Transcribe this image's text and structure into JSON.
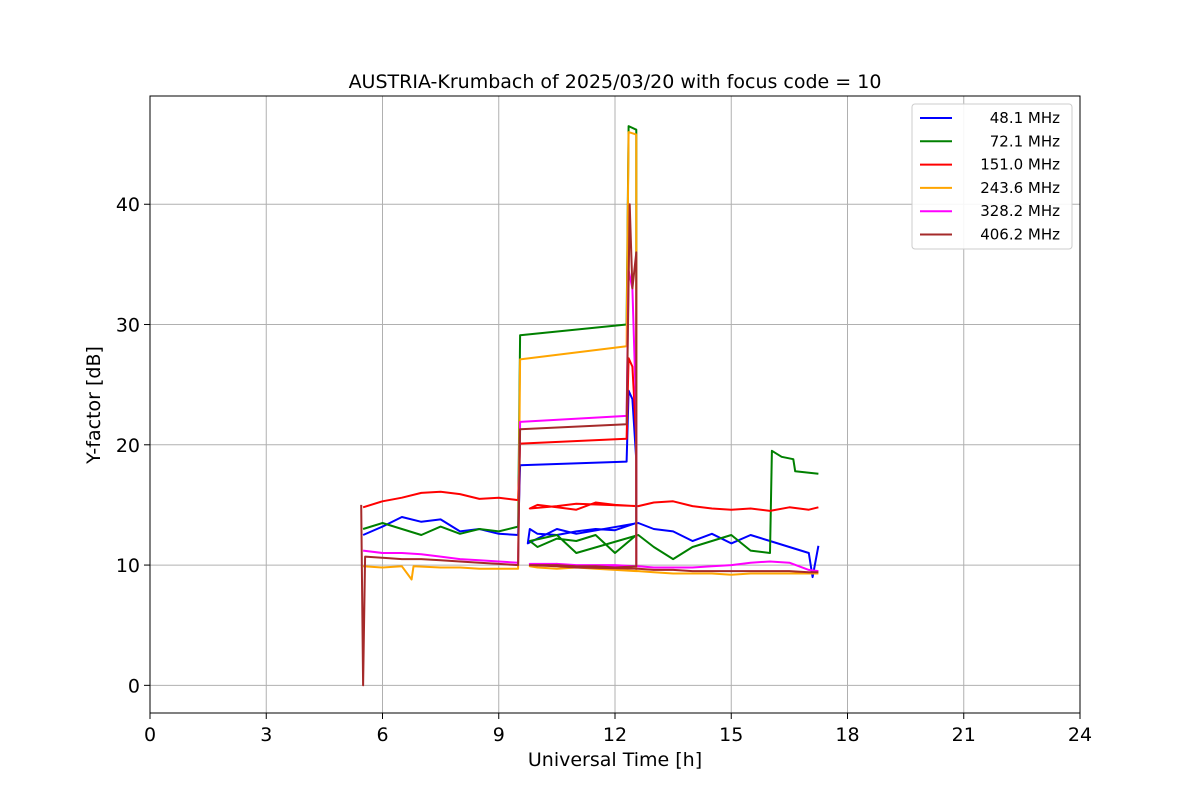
{
  "chart_data": {
    "type": "line",
    "title": "AUSTRIA-Krumbach of 2025/03/20 with focus code = 10",
    "xlabel": "Universal Time [h]",
    "ylabel": "Y-factor [dB]",
    "xlim": [
      0,
      24
    ],
    "ylim": [
      -2.3,
      49
    ],
    "xticks": [
      0,
      3,
      6,
      9,
      12,
      15,
      18,
      21,
      24
    ],
    "yticks": [
      0,
      10,
      20,
      30,
      40
    ],
    "grid": true,
    "legend_position": "top-right",
    "series": [
      {
        "name": "48.1 MHz",
        "color": "#0000ff",
        "points": [
          [
            5.5,
            12.5
          ],
          [
            6.0,
            13.2
          ],
          [
            6.5,
            14.0
          ],
          [
            7.0,
            13.6
          ],
          [
            7.5,
            13.8
          ],
          [
            8.0,
            12.8
          ],
          [
            8.5,
            13.0
          ],
          [
            9.0,
            12.6
          ],
          [
            9.5,
            12.5
          ],
          [
            9.55,
            18.3
          ],
          [
            12.3,
            18.6
          ],
          [
            12.35,
            24.5
          ],
          [
            12.45,
            23.8
          ],
          [
            12.55,
            18.7
          ],
          [
            12.55,
            13.5
          ],
          [
            12.0,
            12.9
          ],
          [
            11.5,
            13.0
          ],
          [
            11.0,
            12.8
          ],
          [
            10.5,
            12.5
          ],
          [
            10.0,
            12.6
          ],
          [
            9.8,
            13.0
          ],
          [
            9.75,
            11.8
          ],
          [
            10.5,
            13.0
          ],
          [
            11.0,
            12.6
          ],
          [
            12.6,
            13.5
          ],
          [
            13.0,
            13.0
          ],
          [
            13.5,
            12.8
          ],
          [
            14.0,
            12.0
          ],
          [
            14.5,
            12.6
          ],
          [
            15.0,
            11.8
          ],
          [
            15.5,
            12.5
          ],
          [
            16.0,
            12.0
          ],
          [
            16.5,
            11.5
          ],
          [
            17.0,
            11.0
          ],
          [
            17.1,
            9.0
          ],
          [
            17.25,
            11.6
          ]
        ]
      },
      {
        "name": "72.1 MHz",
        "color": "#008000",
        "points": [
          [
            5.5,
            13.0
          ],
          [
            6.0,
            13.5
          ],
          [
            6.5,
            13.0
          ],
          [
            7.0,
            12.5
          ],
          [
            7.5,
            13.2
          ],
          [
            8.0,
            12.6
          ],
          [
            8.5,
            13.0
          ],
          [
            9.0,
            12.8
          ],
          [
            9.5,
            13.2
          ],
          [
            9.55,
            29.1
          ],
          [
            12.3,
            30.0
          ],
          [
            12.35,
            46.5
          ],
          [
            12.55,
            46.2
          ],
          [
            12.55,
            12.5
          ],
          [
            12.0,
            11.0
          ],
          [
            11.5,
            12.5
          ],
          [
            11.0,
            12.0
          ],
          [
            10.5,
            12.2
          ],
          [
            10.0,
            11.5
          ],
          [
            9.8,
            12.0
          ],
          [
            10.5,
            12.5
          ],
          [
            11.0,
            11.0
          ],
          [
            12.6,
            12.5
          ],
          [
            13.0,
            11.5
          ],
          [
            13.5,
            10.5
          ],
          [
            14.0,
            11.5
          ],
          [
            14.5,
            12.0
          ],
          [
            15.0,
            12.5
          ],
          [
            15.5,
            11.2
          ],
          [
            16.0,
            11.0
          ],
          [
            16.05,
            19.5
          ],
          [
            16.3,
            19.0
          ],
          [
            16.6,
            18.8
          ],
          [
            16.65,
            17.8
          ],
          [
            17.25,
            17.6
          ]
        ]
      },
      {
        "name": "151.0 MHz",
        "color": "#ff0000",
        "points": [
          [
            5.5,
            14.8
          ],
          [
            6.0,
            15.3
          ],
          [
            6.5,
            15.6
          ],
          [
            7.0,
            16.0
          ],
          [
            7.5,
            16.1
          ],
          [
            8.0,
            15.9
          ],
          [
            8.5,
            15.5
          ],
          [
            9.0,
            15.6
          ],
          [
            9.5,
            15.4
          ],
          [
            9.55,
            20.1
          ],
          [
            12.3,
            20.5
          ],
          [
            12.35,
            27.2
          ],
          [
            12.45,
            26.5
          ],
          [
            12.55,
            20.5
          ],
          [
            12.55,
            14.9
          ],
          [
            12.0,
            15.0
          ],
          [
            11.5,
            15.2
          ],
          [
            11.0,
            14.6
          ],
          [
            10.5,
            14.8
          ],
          [
            10.0,
            15.0
          ],
          [
            9.8,
            14.7
          ],
          [
            10.5,
            14.9
          ],
          [
            11.0,
            15.1
          ],
          [
            12.6,
            14.9
          ],
          [
            13.0,
            15.2
          ],
          [
            13.5,
            15.3
          ],
          [
            14.0,
            14.9
          ],
          [
            14.5,
            14.7
          ],
          [
            15.0,
            14.6
          ],
          [
            15.5,
            14.7
          ],
          [
            16.0,
            14.5
          ],
          [
            16.5,
            14.8
          ],
          [
            17.0,
            14.6
          ],
          [
            17.25,
            14.8
          ]
        ]
      },
      {
        "name": "243.6 MHz",
        "color": "#ffa500",
        "points": [
          [
            5.5,
            9.9
          ],
          [
            6.0,
            9.8
          ],
          [
            6.5,
            9.9
          ],
          [
            6.75,
            8.8
          ],
          [
            6.8,
            9.9
          ],
          [
            7.5,
            9.8
          ],
          [
            8.0,
            9.8
          ],
          [
            8.5,
            9.7
          ],
          [
            9.0,
            9.7
          ],
          [
            9.5,
            9.7
          ],
          [
            9.55,
            27.1
          ],
          [
            12.3,
            28.2
          ],
          [
            12.35,
            46.0
          ],
          [
            12.55,
            45.8
          ],
          [
            12.55,
            9.5
          ],
          [
            12.0,
            9.6
          ],
          [
            11.5,
            9.7
          ],
          [
            11.0,
            9.8
          ],
          [
            10.5,
            9.7
          ],
          [
            10.0,
            9.8
          ],
          [
            9.8,
            9.9
          ],
          [
            10.5,
            10.1
          ],
          [
            11.0,
            9.8
          ],
          [
            12.6,
            9.5
          ],
          [
            13.0,
            9.4
          ],
          [
            13.5,
            9.3
          ],
          [
            14.0,
            9.3
          ],
          [
            14.5,
            9.3
          ],
          [
            15.0,
            9.2
          ],
          [
            15.5,
            9.3
          ],
          [
            16.0,
            9.3
          ],
          [
            16.5,
            9.3
          ],
          [
            17.0,
            9.3
          ],
          [
            17.25,
            9.3
          ]
        ]
      },
      {
        "name": "328.2 MHz",
        "color": "#ff00ff",
        "points": [
          [
            5.5,
            11.2
          ],
          [
            6.0,
            11.0
          ],
          [
            6.5,
            11.0
          ],
          [
            7.0,
            10.9
          ],
          [
            7.5,
            10.7
          ],
          [
            8.0,
            10.5
          ],
          [
            8.5,
            10.4
          ],
          [
            9.0,
            10.3
          ],
          [
            9.5,
            10.2
          ],
          [
            9.55,
            21.9
          ],
          [
            12.3,
            22.4
          ],
          [
            12.35,
            34.5
          ],
          [
            12.45,
            33.0
          ],
          [
            12.55,
            22.3
          ],
          [
            12.55,
            9.9
          ],
          [
            12.0,
            10.0
          ],
          [
            11.5,
            10.0
          ],
          [
            11.0,
            10.0
          ],
          [
            10.5,
            10.1
          ],
          [
            10.0,
            10.1
          ],
          [
            9.8,
            10.1
          ],
          [
            10.5,
            10.0
          ],
          [
            11.0,
            9.9
          ],
          [
            12.6,
            9.9
          ],
          [
            13.0,
            9.8
          ],
          [
            13.5,
            9.8
          ],
          [
            14.0,
            9.8
          ],
          [
            14.5,
            9.9
          ],
          [
            15.0,
            10.0
          ],
          [
            15.5,
            10.2
          ],
          [
            16.0,
            10.3
          ],
          [
            16.5,
            10.2
          ],
          [
            17.0,
            9.6
          ],
          [
            17.25,
            9.5
          ]
        ]
      },
      {
        "name": "406.2 MHz",
        "color": "#a52a2a",
        "points": [
          [
            5.45,
            15.0
          ],
          [
            5.5,
            0.0
          ],
          [
            5.55,
            10.7
          ],
          [
            6.0,
            10.6
          ],
          [
            6.5,
            10.5
          ],
          [
            7.0,
            10.5
          ],
          [
            7.5,
            10.4
          ],
          [
            8.0,
            10.3
          ],
          [
            8.5,
            10.2
          ],
          [
            9.0,
            10.1
          ],
          [
            9.5,
            10.0
          ],
          [
            9.55,
            21.3
          ],
          [
            12.3,
            21.7
          ],
          [
            12.38,
            40.0
          ],
          [
            12.45,
            33.0
          ],
          [
            12.55,
            36.0
          ],
          [
            12.55,
            21.8
          ],
          [
            12.55,
            9.9
          ],
          [
            12.0,
            9.8
          ],
          [
            11.5,
            9.9
          ],
          [
            11.0,
            9.9
          ],
          [
            10.5,
            10.0
          ],
          [
            10.0,
            10.0
          ],
          [
            9.8,
            10.0
          ],
          [
            10.5,
            9.9
          ],
          [
            11.0,
            9.8
          ],
          [
            12.6,
            9.7
          ],
          [
            13.0,
            9.6
          ],
          [
            13.5,
            9.6
          ],
          [
            14.0,
            9.5
          ],
          [
            14.5,
            9.5
          ],
          [
            15.0,
            9.5
          ],
          [
            15.5,
            9.5
          ],
          [
            16.0,
            9.5
          ],
          [
            16.5,
            9.5
          ],
          [
            17.0,
            9.4
          ],
          [
            17.25,
            9.4
          ]
        ]
      }
    ]
  }
}
